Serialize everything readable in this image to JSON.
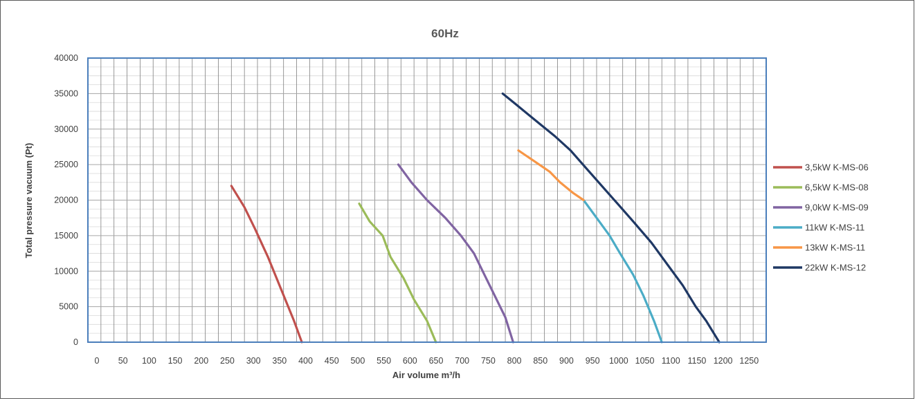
{
  "chart_data": {
    "type": "line",
    "title": "60Hz",
    "xlabel": "Air volume m³/h",
    "ylabel": "Total pressure vacuum (Pt)",
    "xlim": [
      0,
      1300
    ],
    "ylim": [
      0,
      40000
    ],
    "x_ticks": [
      "0",
      "50",
      "100",
      "150",
      "200",
      "250",
      "300",
      "350",
      "400",
      "450",
      "500",
      "550",
      "600",
      "650",
      "700",
      "750",
      "800",
      "850",
      "900",
      "950",
      "1000",
      "1050",
      "1100",
      "1150",
      "1200",
      "1250"
    ],
    "y_ticks": [
      "0",
      "5000",
      "10000",
      "15000",
      "20000",
      "25000",
      "30000",
      "35000",
      "40000"
    ],
    "grid": true,
    "legend_position": "right",
    "series": [
      {
        "name": "3,5kW K-MS-06",
        "color": "#c0504d",
        "points": [
          [
            275,
            22000
          ],
          [
            300,
            19000
          ],
          [
            320,
            16000
          ],
          [
            345,
            12000
          ],
          [
            370,
            7500
          ],
          [
            395,
            3000
          ],
          [
            410,
            0
          ]
        ]
      },
      {
        "name": "6,5kW K-MS-08",
        "color": "#9bbb59",
        "points": [
          [
            520,
            19500
          ],
          [
            540,
            17000
          ],
          [
            565,
            15000
          ],
          [
            580,
            12000
          ],
          [
            605,
            9000
          ],
          [
            625,
            6000
          ],
          [
            650,
            3000
          ],
          [
            667,
            0
          ]
        ]
      },
      {
        "name": "9,0kW K-MS-09",
        "color": "#8064a2",
        "points": [
          [
            595,
            25000
          ],
          [
            620,
            22500
          ],
          [
            650,
            20000
          ],
          [
            685,
            17500
          ],
          [
            715,
            15000
          ],
          [
            740,
            12500
          ],
          [
            760,
            9500
          ],
          [
            780,
            6500
          ],
          [
            800,
            3500
          ],
          [
            815,
            0
          ]
        ]
      },
      {
        "name": "11kW K-MS-11",
        "color": "#4bacc6",
        "points": [
          [
            950,
            20000
          ],
          [
            975,
            17500
          ],
          [
            1000,
            15000
          ],
          [
            1020,
            12500
          ],
          [
            1045,
            9500
          ],
          [
            1065,
            6500
          ],
          [
            1085,
            3000
          ],
          [
            1100,
            0
          ]
        ]
      },
      {
        "name": "13kW K-MS-11",
        "color": "#f79646",
        "points": [
          [
            825,
            27000
          ],
          [
            845,
            26000
          ],
          [
            865,
            25000
          ],
          [
            885,
            24000
          ],
          [
            905,
            22500
          ],
          [
            930,
            21000
          ],
          [
            950,
            20000
          ]
        ]
      },
      {
        "name": "22kW K-MS-12",
        "color": "#1f3864",
        "points": [
          [
            795,
            35000
          ],
          [
            820,
            33500
          ],
          [
            845,
            32000
          ],
          [
            870,
            30500
          ],
          [
            895,
            29000
          ],
          [
            925,
            27000
          ],
          [
            955,
            24500
          ],
          [
            985,
            22000
          ],
          [
            1015,
            19500
          ],
          [
            1045,
            17000
          ],
          [
            1080,
            14000
          ],
          [
            1110,
            11000
          ],
          [
            1140,
            8000
          ],
          [
            1165,
            5000
          ],
          [
            1185,
            3000
          ],
          [
            1210,
            0
          ]
        ]
      }
    ]
  }
}
